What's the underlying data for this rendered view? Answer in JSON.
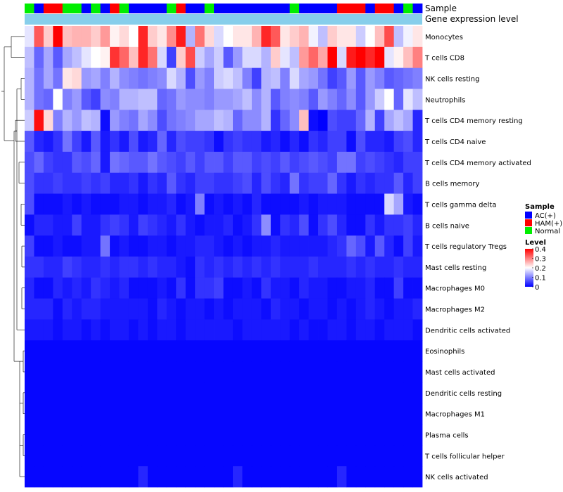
{
  "chart_data": {
    "type": "heatmap",
    "title": "",
    "annotation_labels": [
      "Sample",
      "Gene expression level"
    ],
    "sample_groups": [
      "Normal",
      "AC(+)",
      "HAM(+)",
      "HAM(+)",
      "Normal",
      "Normal",
      "AC(+)",
      "Normal",
      "AC(+)",
      "HAM(+)",
      "Normal",
      "AC(+)",
      "AC(+)",
      "AC(+)",
      "AC(+)",
      "Normal",
      "HAM(+)",
      "AC(+)",
      "AC(+)",
      "Normal",
      "AC(+)",
      "AC(+)",
      "AC(+)",
      "AC(+)",
      "AC(+)",
      "AC(+)",
      "AC(+)",
      "AC(+)",
      "Normal",
      "AC(+)",
      "AC(+)",
      "AC(+)",
      "AC(+)",
      "HAM(+)",
      "HAM(+)",
      "HAM(+)",
      "AC(+)",
      "HAM(+)",
      "HAM(+)",
      "AC(+)",
      "Normal",
      "AC(+)"
    ],
    "group_colors": {
      "AC(+)": "#0000ff",
      "HAM(+)": "#ff0000",
      "Normal": "#00ee00"
    },
    "expression_annotation_color": "#87ceeb",
    "rows": [
      "Monocytes",
      "T cells CD8",
      "NK cells resting",
      "Neutrophils",
      "T cells CD4 memory resting",
      "T cells CD4 naive",
      "T cells CD4 memory activated",
      "B cells memory",
      "T cells gamma delta",
      "B cells naive",
      "T cells regulatory  Tregs",
      "Mast cells resting",
      "Macrophages M0",
      "Macrophages M2",
      "Dendritic cells activated",
      "Eosinophils",
      "Mast cells activated",
      "Dendritic cells resting",
      "Macrophages M1",
      "Plasma cells",
      "T cells follicular helper",
      "NK cells activated"
    ],
    "values": [
      [
        0.18,
        0.33,
        0.24,
        0.4,
        0.25,
        0.26,
        0.26,
        0.24,
        0.28,
        0.21,
        0.23,
        0.2,
        0.37,
        0.24,
        0.22,
        0.29,
        0.38,
        0.14,
        0.31,
        0.23,
        0.17,
        0.2,
        0.22,
        0.22,
        0.26,
        0.37,
        0.33,
        0.22,
        0.24,
        0.26,
        0.19,
        0.15,
        0.24,
        0.22,
        0.22,
        0.16,
        0.2,
        0.25,
        0.34,
        0.15,
        0.19,
        0.22
      ],
      [
        0.15,
        0.08,
        0.13,
        0.07,
        0.13,
        0.15,
        0.18,
        0.2,
        0.21,
        0.36,
        0.32,
        0.25,
        0.37,
        0.31,
        0.17,
        0.05,
        0.24,
        0.34,
        0.16,
        0.13,
        0.16,
        0.07,
        0.12,
        0.17,
        0.17,
        0.14,
        0.24,
        0.18,
        0.15,
        0.28,
        0.32,
        0.27,
        0.4,
        0.17,
        0.38,
        0.4,
        0.37,
        0.4,
        0.18,
        0.21,
        0.25,
        0.3
      ],
      [
        0.14,
        0.09,
        0.13,
        0.09,
        0.22,
        0.23,
        0.12,
        0.13,
        0.1,
        0.14,
        0.11,
        0.1,
        0.09,
        0.1,
        0.11,
        0.17,
        0.14,
        0.06,
        0.12,
        0.1,
        0.16,
        0.17,
        0.15,
        0.1,
        0.05,
        0.14,
        0.15,
        0.1,
        0.17,
        0.13,
        0.12,
        0.09,
        0.05,
        0.07,
        0.12,
        0.07,
        0.12,
        0.1,
        0.07,
        0.08,
        0.09,
        0.1
      ],
      [
        0.14,
        0.09,
        0.08,
        0.2,
        0.1,
        0.12,
        0.07,
        0.05,
        0.11,
        0.1,
        0.14,
        0.14,
        0.15,
        0.15,
        0.08,
        0.09,
        0.12,
        0.11,
        0.11,
        0.1,
        0.12,
        0.12,
        0.13,
        0.15,
        0.11,
        0.14,
        0.07,
        0.1,
        0.11,
        0.1,
        0.07,
        0.12,
        0.1,
        0.08,
        0.11,
        0.07,
        0.12,
        0.16,
        0.2,
        0.08,
        0.18,
        0.15
      ],
      [
        0.16,
        0.39,
        0.23,
        0.1,
        0.14,
        0.12,
        0.15,
        0.14,
        0.01,
        0.12,
        0.1,
        0.09,
        0.13,
        0.11,
        0.06,
        0.09,
        0.1,
        0.11,
        0.13,
        0.13,
        0.15,
        0.14,
        0.08,
        0.11,
        0.11,
        0.14,
        0.04,
        0.08,
        0.11,
        0.25,
        0.01,
        0.0,
        0.06,
        0.05,
        0.05,
        0.08,
        0.14,
        0.05,
        0.13,
        0.15,
        0.13,
        0.03
      ],
      [
        0.07,
        0.03,
        0.02,
        0.04,
        0.09,
        0.05,
        0.02,
        0.07,
        0.02,
        0.04,
        0.02,
        0.06,
        0.02,
        0.03,
        0.08,
        0.03,
        0.06,
        0.05,
        0.05,
        0.04,
        0.01,
        0.04,
        0.05,
        0.04,
        0.04,
        0.02,
        0.03,
        0.01,
        0.03,
        0.01,
        0.04,
        0.03,
        0.05,
        0.05,
        0.01,
        0.06,
        0.03,
        0.03,
        0.02,
        0.05,
        0.06,
        0.03
      ],
      [
        0.06,
        0.08,
        0.05,
        0.04,
        0.04,
        0.07,
        0.06,
        0.08,
        0.02,
        0.09,
        0.08,
        0.07,
        0.07,
        0.09,
        0.07,
        0.06,
        0.05,
        0.07,
        0.05,
        0.07,
        0.07,
        0.05,
        0.07,
        0.07,
        0.05,
        0.06,
        0.05,
        0.07,
        0.05,
        0.06,
        0.07,
        0.06,
        0.05,
        0.09,
        0.09,
        0.05,
        0.06,
        0.05,
        0.04,
        0.03,
        0.05,
        0.05
      ],
      [
        0.06,
        0.04,
        0.04,
        0.05,
        0.04,
        0.04,
        0.05,
        0.04,
        0.05,
        0.03,
        0.03,
        0.04,
        0.02,
        0.04,
        0.03,
        0.07,
        0.04,
        0.03,
        0.05,
        0.05,
        0.04,
        0.04,
        0.05,
        0.06,
        0.03,
        0.06,
        0.04,
        0.03,
        0.09,
        0.04,
        0.05,
        0.05,
        0.08,
        0.04,
        0.02,
        0.04,
        0.03,
        0.04,
        0.04,
        0.07,
        0.03,
        0.05
      ],
      [
        0.06,
        0.01,
        0.01,
        0.01,
        0.02,
        0.01,
        0.02,
        0.01,
        0.01,
        0.01,
        0.02,
        0.02,
        0.01,
        0.02,
        0.02,
        0.03,
        0.01,
        0.02,
        0.1,
        0.01,
        0.02,
        0.01,
        0.02,
        0.01,
        0.03,
        0.01,
        0.01,
        0.01,
        0.01,
        0.02,
        0.01,
        0.02,
        0.02,
        0.02,
        0.01,
        0.01,
        0.01,
        0.01,
        0.17,
        0.13,
        0.02,
        0.01
      ],
      [
        0.01,
        0.03,
        0.03,
        0.02,
        0.02,
        0.05,
        0.02,
        0.02,
        0.04,
        0.05,
        0.04,
        0.02,
        0.05,
        0.04,
        0.03,
        0.02,
        0.04,
        0.02,
        0.01,
        0.02,
        0.02,
        0.03,
        0.01,
        0.02,
        0.04,
        0.11,
        0.01,
        0.04,
        0.03,
        0.06,
        0.01,
        0.04,
        0.06,
        0.03,
        0.01,
        0.01,
        0.04,
        0.02,
        0.04,
        0.04,
        0.05,
        0.03
      ],
      [
        0.05,
        0.01,
        0.01,
        0.02,
        0.01,
        0.01,
        0.02,
        0.02,
        0.09,
        0.01,
        0.02,
        0.01,
        0.01,
        0.02,
        0.02,
        0.01,
        0.02,
        0.02,
        0.03,
        0.03,
        0.02,
        0.01,
        0.02,
        0.01,
        0.02,
        0.02,
        0.03,
        0.02,
        0.02,
        0.02,
        0.02,
        0.02,
        0.03,
        0.04,
        0.08,
        0.06,
        0.02,
        0.07,
        0.03,
        0.01,
        0.05,
        0.02
      ],
      [
        0.04,
        0.04,
        0.03,
        0.03,
        0.05,
        0.04,
        0.03,
        0.03,
        0.04,
        0.03,
        0.04,
        0.04,
        0.03,
        0.04,
        0.03,
        0.03,
        0.02,
        0.01,
        0.04,
        0.03,
        0.04,
        0.03,
        0.04,
        0.03,
        0.04,
        0.03,
        0.04,
        0.03,
        0.03,
        0.03,
        0.04,
        0.03,
        0.03,
        0.03,
        0.04,
        0.03,
        0.04,
        0.03,
        0.03,
        0.04,
        0.03,
        0.03
      ],
      [
        0.03,
        0.01,
        0.01,
        0.03,
        0.02,
        0.03,
        0.02,
        0.04,
        0.03,
        0.02,
        0.03,
        0.01,
        0.01,
        0.01,
        0.02,
        0.01,
        0.04,
        0.01,
        0.04,
        0.04,
        0.05,
        0.01,
        0.01,
        0.02,
        0.01,
        0.04,
        0.02,
        0.02,
        0.01,
        0.03,
        0.02,
        0.02,
        0.01,
        0.01,
        0.02,
        0.02,
        0.03,
        0.01,
        0.01,
        0.05,
        0.01,
        0.01
      ],
      [
        0.03,
        0.03,
        0.03,
        0.01,
        0.03,
        0.02,
        0.03,
        0.03,
        0.02,
        0.02,
        0.02,
        0.02,
        0.02,
        0.01,
        0.03,
        0.02,
        0.01,
        0.02,
        0.02,
        0.01,
        0.02,
        0.01,
        0.02,
        0.02,
        0.02,
        0.01,
        0.03,
        0.02,
        0.02,
        0.01,
        0.02,
        0.02,
        0.01,
        0.02,
        0.01,
        0.02,
        0.03,
        0.02,
        0.01,
        0.02,
        0.02,
        0.03
      ],
      [
        0.02,
        0.02,
        0.02,
        0.01,
        0.02,
        0.02,
        0.01,
        0.02,
        0.01,
        0.02,
        0.02,
        0.01,
        0.02,
        0.01,
        0.02,
        0.02,
        0.01,
        0.02,
        0.02,
        0.02,
        0.02,
        0.02,
        0.01,
        0.02,
        0.02,
        0.02,
        0.02,
        0.02,
        0.01,
        0.02,
        0.01,
        0.01,
        0.02,
        0.02,
        0.01,
        0.02,
        0.02,
        0.01,
        0.02,
        0.02,
        0.02,
        0.01
      ],
      [
        0.005,
        0.005,
        0.005,
        0.005,
        0.005,
        0.005,
        0.005,
        0.005,
        0.005,
        0.005,
        0.005,
        0.005,
        0.005,
        0.005,
        0.005,
        0.005,
        0.005,
        0.005,
        0.005,
        0.005,
        0.005,
        0.005,
        0.005,
        0.005,
        0.005,
        0.005,
        0.005,
        0.005,
        0.005,
        0.005,
        0.005,
        0.005,
        0.005,
        0.005,
        0.005,
        0.005,
        0.005,
        0.005,
        0.005,
        0.005,
        0.005,
        0.005
      ],
      [
        0.005,
        0.005,
        0.005,
        0.005,
        0.005,
        0.005,
        0.005,
        0.005,
        0.005,
        0.005,
        0.005,
        0.005,
        0.005,
        0.005,
        0.005,
        0.005,
        0.005,
        0.005,
        0.005,
        0.005,
        0.005,
        0.005,
        0.005,
        0.005,
        0.005,
        0.005,
        0.005,
        0.005,
        0.005,
        0.005,
        0.005,
        0.005,
        0.005,
        0.005,
        0.005,
        0.005,
        0.005,
        0.005,
        0.005,
        0.005,
        0.005,
        0.005
      ],
      [
        0.005,
        0.005,
        0.005,
        0.005,
        0.005,
        0.005,
        0.005,
        0.005,
        0.005,
        0.005,
        0.005,
        0.005,
        0.005,
        0.005,
        0.005,
        0.005,
        0.005,
        0.005,
        0.005,
        0.005,
        0.005,
        0.005,
        0.005,
        0.005,
        0.005,
        0.005,
        0.005,
        0.005,
        0.005,
        0.005,
        0.005,
        0.005,
        0.005,
        0.005,
        0.005,
        0.005,
        0.005,
        0.005,
        0.005,
        0.005,
        0.005,
        0.005
      ],
      [
        0.005,
        0.005,
        0.005,
        0.005,
        0.005,
        0.005,
        0.005,
        0.005,
        0.005,
        0.005,
        0.005,
        0.005,
        0.005,
        0.005,
        0.005,
        0.005,
        0.005,
        0.005,
        0.005,
        0.005,
        0.005,
        0.005,
        0.005,
        0.005,
        0.005,
        0.005,
        0.005,
        0.005,
        0.005,
        0.005,
        0.005,
        0.005,
        0.005,
        0.005,
        0.005,
        0.005,
        0.005,
        0.005,
        0.005,
        0.005,
        0.005,
        0.005
      ],
      [
        0.005,
        0.005,
        0.005,
        0.005,
        0.005,
        0.005,
        0.005,
        0.005,
        0.005,
        0.005,
        0.005,
        0.005,
        0.005,
        0.005,
        0.005,
        0.005,
        0.005,
        0.005,
        0.005,
        0.005,
        0.005,
        0.005,
        0.005,
        0.005,
        0.005,
        0.005,
        0.005,
        0.005,
        0.005,
        0.005,
        0.005,
        0.005,
        0.005,
        0.005,
        0.005,
        0.005,
        0.005,
        0.005,
        0.005,
        0.005,
        0.005,
        0.005
      ],
      [
        0.005,
        0.005,
        0.005,
        0.005,
        0.005,
        0.005,
        0.005,
        0.005,
        0.005,
        0.005,
        0.005,
        0.005,
        0.005,
        0.005,
        0.005,
        0.005,
        0.005,
        0.005,
        0.005,
        0.005,
        0.005,
        0.005,
        0.005,
        0.005,
        0.005,
        0.005,
        0.005,
        0.005,
        0.005,
        0.005,
        0.005,
        0.005,
        0.005,
        0.005,
        0.005,
        0.005,
        0.005,
        0.005,
        0.005,
        0.005,
        0.005,
        0.005
      ],
      [
        0.005,
        0.005,
        0.005,
        0.005,
        0.005,
        0.005,
        0.005,
        0.005,
        0.005,
        0.005,
        0.005,
        0.005,
        0.03,
        0.005,
        0.005,
        0.005,
        0.005,
        0.005,
        0.005,
        0.005,
        0.005,
        0.005,
        0.03,
        0.005,
        0.005,
        0.005,
        0.005,
        0.005,
        0.005,
        0.005,
        0.005,
        0.005,
        0.005,
        0.03,
        0.005,
        0.005,
        0.005,
        0.005,
        0.005,
        0.005,
        0.005,
        0.005
      ]
    ],
    "color_scale": {
      "min": 0,
      "mid": 0.2,
      "max": 0.4,
      "low": "#0000ff",
      "midcolor": "#ffffff",
      "high": "#ff0000"
    },
    "legend": {
      "sample_title": "Sample",
      "sample_entries": [
        "AC(+)",
        "HAM(+)",
        "Normal"
      ],
      "level_title": "Level",
      "level_ticks": [
        "0.4",
        "0.3",
        "0.2",
        "0.1",
        "0"
      ],
      "placement": "right"
    },
    "row_dendrogram": true
  }
}
